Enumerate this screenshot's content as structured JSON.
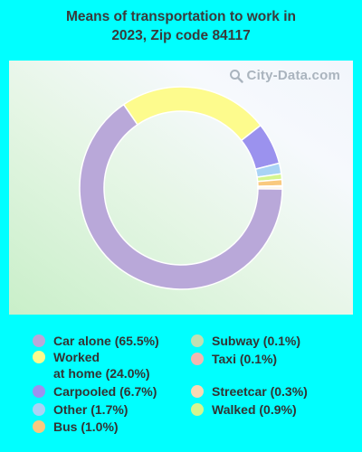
{
  "chart_data": {
    "type": "pie",
    "title": "Means of transportation to work in 2023, Zip code 84117",
    "watermark": "City-Data.com",
    "slices": [
      {
        "label": "Car alone (65.5%)",
        "value": 65.5,
        "color": "#b9a8d9"
      },
      {
        "label": "Worked at home (24.0%)",
        "value": 24.0,
        "color": "#fdfb8d"
      },
      {
        "label": "Carpooled (6.7%)",
        "value": 6.7,
        "color": "#9b92ee"
      },
      {
        "label": "Other (1.7%)",
        "value": 1.7,
        "color": "#a9d3f5"
      },
      {
        "label": "Bus (1.0%)",
        "value": 1.0,
        "color": "#f9c97f"
      },
      {
        "label": "Subway (0.1%)",
        "value": 0.1,
        "color": "#bfe0b3"
      },
      {
        "label": "Taxi (0.1%)",
        "value": 0.1,
        "color": "#f3b7b0"
      },
      {
        "label": "Streetcar (0.3%)",
        "value": 0.3,
        "color": "#f9d9b4"
      },
      {
        "label": "Walked (0.9%)",
        "value": 0.9,
        "color": "#d5f58f"
      }
    ],
    "donut_order": [
      "Car alone (65.5%)",
      "Worked at home (24.0%)",
      "Carpooled (6.7%)",
      "Other (1.7%)",
      "Walked (0.9%)",
      "Bus (1.0%)",
      "Subway (0.1%)",
      "Taxi (0.1%)",
      "Streetcar (0.3%)"
    ]
  },
  "legend": {
    "items": [
      {
        "line1": "Car alone (65.5%)",
        "line2": "",
        "color": "#b9a8d9"
      },
      {
        "line1": "Worked",
        "line2": "at home (24.0%)",
        "color": "#fdfb8d"
      },
      {
        "line1": "Carpooled (6.7%)",
        "line2": "",
        "color": "#9b92ee"
      },
      {
        "line1": "Other (1.7%)",
        "line2": "",
        "color": "#a9d3f5"
      },
      {
        "line1": "Bus (1.0%)",
        "line2": "",
        "color": "#f9c97f"
      },
      {
        "line1": "Subway (0.1%)",
        "line2": "",
        "color": "#bfe0b3"
      },
      {
        "line1": "Taxi (0.1%)",
        "line2": "",
        "color": "#f3b7b0"
      },
      {
        "line1": "Streetcar (0.3%)",
        "line2": "",
        "color": "#f9d9b4"
      },
      {
        "line1": "Walked (0.9%)",
        "line2": "",
        "color": "#d5f58f"
      }
    ]
  }
}
